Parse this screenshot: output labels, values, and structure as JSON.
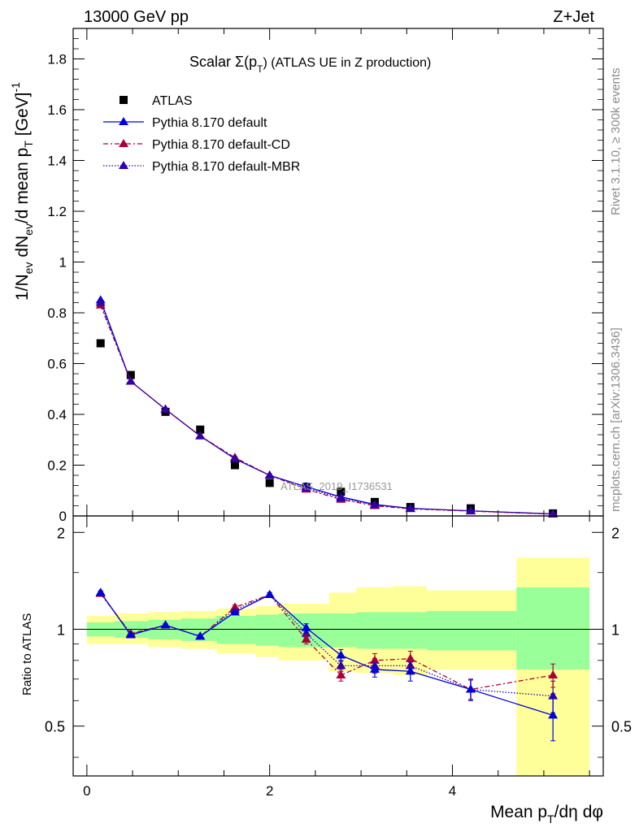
{
  "header": {
    "energy": "13000 GeV pp",
    "process": "Z+Jet"
  },
  "side_labels": {
    "rivet": "Rivet 3.1.10, ≥ 300k events",
    "mcplots": "mcplots.cern.ch [arXiv:1306.3436]"
  },
  "colors": {
    "atlas": "#000000",
    "default": "#0000dd",
    "cd": "#aa0033",
    "mbr": "#3300aa",
    "band_inner": "#99ff99",
    "band_outer": "#ffff99"
  },
  "chart_data": [
    {
      "type": "scatter",
      "panel": "main",
      "title_prefix": "Scalar Σ(p",
      "title_sub": "T",
      "title_suffix": ") (ATLAS UE in Z production)",
      "ylabel": "1/N_ev dN_ev/d mean p_T [GeV]^-1",
      "ylim": [
        0,
        1.92
      ],
      "yticks": [
        0,
        0.2,
        0.4,
        0.6,
        0.8,
        1,
        1.2,
        1.4,
        1.6,
        1.8
      ],
      "ytick_labels": [
        "0",
        "0.2",
        "0.4",
        "0.6",
        "0.8",
        "1",
        "1.2",
        "1.4",
        "1.6",
        "1.8"
      ],
      "xlim": [
        -0.15,
        5.65
      ],
      "watermark": "ATLAS_2019_I1736531",
      "legend": [
        "ATLAS",
        "Pythia 8.170 default",
        "Pythia 8.170 default-CD",
        "Pythia 8.170 default-MBR"
      ],
      "bin_edges": [
        0,
        0.3,
        0.67,
        1.03,
        1.42,
        1.85,
        2.1,
        2.65,
        2.95,
        3.35,
        3.72,
        4.7,
        5.5
      ],
      "x": [
        0.15,
        0.48,
        0.86,
        1.24,
        1.62,
        2.0,
        2.4,
        2.78,
        3.15,
        3.54,
        4.2,
        5.1
      ],
      "series": [
        {
          "name": "ATLAS",
          "values": [
            0.68,
            0.555,
            0.41,
            0.34,
            0.2,
            0.13,
            0.115,
            0.095,
            0.055,
            0.035,
            0.03,
            0.01
          ]
        },
        {
          "name": "Pythia 8.170 default",
          "values": [
            0.85,
            0.53,
            0.42,
            0.315,
            0.225,
            0.16,
            0.115,
            0.075,
            0.045,
            0.03,
            0.02,
            0.008
          ]
        },
        {
          "name": "Pythia 8.170 default-CD",
          "values": [
            0.83,
            0.53,
            0.42,
            0.315,
            0.23,
            0.16,
            0.105,
            0.065,
            0.04,
            0.028,
            0.019,
            0.007
          ]
        },
        {
          "name": "Pythia 8.170 default-MBR",
          "values": [
            0.84,
            0.53,
            0.42,
            0.315,
            0.225,
            0.16,
            0.11,
            0.07,
            0.043,
            0.029,
            0.02,
            0.008
          ]
        }
      ]
    },
    {
      "type": "scatter",
      "panel": "ratio",
      "ylabel": "Ratio to ATLAS",
      "xlabel_prefix": "Mean p",
      "xlabel_sub": "T",
      "xlabel_suffix": "/dη dφ",
      "ylim": [
        0.35,
        2.25
      ],
      "yticks": [
        0.5,
        1,
        2
      ],
      "ytick_labels": [
        "0.5",
        "1",
        "2"
      ],
      "xticks": [
        0,
        2,
        4
      ],
      "xtick_labels": [
        "0",
        "2",
        "4"
      ],
      "bands": {
        "inner": [
          [
            0.95,
            1.05
          ],
          [
            0.94,
            1.06
          ],
          [
            0.93,
            1.07
          ],
          [
            0.92,
            1.08
          ],
          [
            0.9,
            1.1
          ],
          [
            0.89,
            1.11
          ],
          [
            0.88,
            1.12
          ],
          [
            0.88,
            1.12
          ],
          [
            0.87,
            1.13
          ],
          [
            0.87,
            1.13
          ],
          [
            0.86,
            1.14
          ],
          [
            0.75,
            1.35
          ]
        ],
        "outer": [
          [
            0.9,
            1.1
          ],
          [
            0.9,
            1.12
          ],
          [
            0.88,
            1.13
          ],
          [
            0.87,
            1.14
          ],
          [
            0.84,
            1.16
          ],
          [
            0.82,
            1.18
          ],
          [
            0.8,
            1.2
          ],
          [
            0.74,
            1.3
          ],
          [
            0.73,
            1.35
          ],
          [
            0.72,
            1.36
          ],
          [
            0.75,
            1.32
          ],
          [
            0.35,
            1.67
          ]
        ]
      },
      "series": [
        {
          "name": "Pythia 8.170 default",
          "values": [
            1.3,
            0.96,
            1.03,
            0.95,
            1.13,
            1.28,
            1.01,
            0.83,
            0.75,
            0.74,
            0.65,
            0.54
          ],
          "errors": [
            0.015,
            0.01,
            0.01,
            0.012,
            0.02,
            0.02,
            0.03,
            0.035,
            0.04,
            0.05,
            0.05,
            0.09
          ]
        },
        {
          "name": "Pythia 8.170 default-CD",
          "values": [
            1.29,
            0.97,
            1.03,
            0.95,
            1.17,
            1.28,
            0.93,
            0.72,
            0.8,
            0.81,
            0.65,
            0.72
          ],
          "errors": [
            0.015,
            0.01,
            0.01,
            0.012,
            0.02,
            0.02,
            0.03,
            0.03,
            0.04,
            0.045,
            0.045,
            0.06
          ]
        },
        {
          "name": "Pythia 8.170 default-MBR",
          "values": [
            1.3,
            0.965,
            1.03,
            0.95,
            1.15,
            1.28,
            0.97,
            0.77,
            0.77,
            0.77,
            0.65,
            0.62
          ],
          "errors": [
            0.015,
            0.01,
            0.01,
            0.012,
            0.02,
            0.02,
            0.03,
            0.03,
            0.04,
            0.045,
            0.045,
            0.07
          ]
        }
      ]
    }
  ]
}
